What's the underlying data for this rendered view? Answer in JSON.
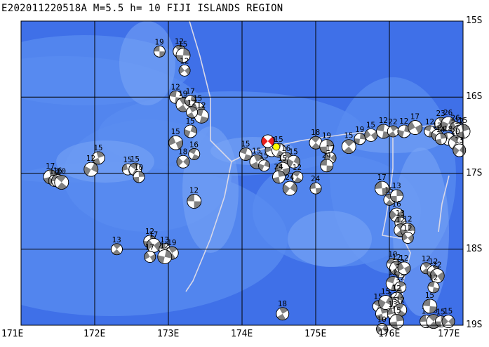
{
  "title": "E202011220518A M=5.5 h= 10 FIJI ISLANDS REGION",
  "map": {
    "lon_range": [
      171,
      177
    ],
    "lat_range": [
      -19,
      -15
    ],
    "colors": {
      "ocean_deep": "#3f70e8",
      "ocean_shallow": "#5a8cf0",
      "ridge": "#7aa6f6",
      "grid": "#000000",
      "plate_boundary": "#d8d8e8",
      "mechanism_fill": "#808080",
      "event_fill": "#e82020",
      "event_center": "#ffff00"
    },
    "x_labels": [
      {
        "lon": 171,
        "text": "171E"
      },
      {
        "lon": 172,
        "text": "172E"
      },
      {
        "lon": 173,
        "text": "173E"
      },
      {
        "lon": 174,
        "text": "174E"
      },
      {
        "lon": 175,
        "text": "175E"
      },
      {
        "lon": 176,
        "text": "176E"
      },
      {
        "lon": 177,
        "text": "177E"
      }
    ],
    "y_labels": [
      {
        "lat": -15,
        "text": "15S"
      },
      {
        "lat": -16,
        "text": "16S"
      },
      {
        "lat": -17,
        "text": "17S"
      },
      {
        "lat": -18,
        "text": "18S"
      },
      {
        "lat": -19,
        "text": "19S"
      }
    ],
    "main_event": {
      "lon": 174.35,
      "lat": -16.58
    },
    "mechanisms": [
      {
        "lon": 172.88,
        "lat": -15.4,
        "depth": "19"
      },
      {
        "lon": 173.15,
        "lat": -15.4,
        "depth": "12"
      },
      {
        "lon": 173.2,
        "lat": -15.45,
        "depth": "15"
      },
      {
        "lon": 173.22,
        "lat": -15.65,
        "depth": "12"
      },
      {
        "lon": 173.1,
        "lat": -16.0,
        "depth": "12"
      },
      {
        "lon": 173.2,
        "lat": -16.1,
        "depth": "19"
      },
      {
        "lon": 173.3,
        "lat": -16.05,
        "depth": "17"
      },
      {
        "lon": 173.4,
        "lat": -16.15,
        "depth": "15"
      },
      {
        "lon": 173.45,
        "lat": -16.25,
        "depth": "12"
      },
      {
        "lon": 173.32,
        "lat": -16.2,
        "depth": "12"
      },
      {
        "lon": 173.3,
        "lat": -16.45,
        "depth": "15"
      },
      {
        "lon": 173.1,
        "lat": -16.6,
        "depth": "15"
      },
      {
        "lon": 173.35,
        "lat": -16.75,
        "depth": "16"
      },
      {
        "lon": 172.05,
        "lat": -16.8,
        "depth": "15"
      },
      {
        "lon": 171.95,
        "lat": -16.95,
        "depth": "12"
      },
      {
        "lon": 172.45,
        "lat": -16.95,
        "depth": "15"
      },
      {
        "lon": 172.55,
        "lat": -16.95,
        "depth": "15"
      },
      {
        "lon": 171.4,
        "lat": -17.05,
        "depth": "17"
      },
      {
        "lon": 171.45,
        "lat": -17.1,
        "depth": "13"
      },
      {
        "lon": 171.5,
        "lat": -17.1,
        "depth": "16"
      },
      {
        "lon": 171.55,
        "lat": -17.12,
        "depth": "20"
      },
      {
        "lon": 172.6,
        "lat": -17.05,
        "depth": "10"
      },
      {
        "lon": 173.2,
        "lat": -16.85,
        "depth": "18"
      },
      {
        "lon": 173.35,
        "lat": -17.37,
        "depth": "12"
      },
      {
        "lon": 172.3,
        "lat": -18.0,
        "depth": "13"
      },
      {
        "lon": 172.75,
        "lat": -17.9,
        "depth": "12"
      },
      {
        "lon": 172.8,
        "lat": -17.95,
        "depth": "17"
      },
      {
        "lon": 172.95,
        "lat": -18.0,
        "depth": "13"
      },
      {
        "lon": 173.05,
        "lat": -18.05,
        "depth": "19"
      },
      {
        "lon": 172.95,
        "lat": -18.1,
        "depth": "12"
      },
      {
        "lon": 172.75,
        "lat": -18.1,
        "depth": "17"
      },
      {
        "lon": 174.05,
        "lat": -16.75,
        "depth": "15"
      },
      {
        "lon": 174.2,
        "lat": -16.85,
        "depth": "15"
      },
      {
        "lon": 174.3,
        "lat": -16.9,
        "depth": "15"
      },
      {
        "lon": 174.4,
        "lat": -16.7,
        "depth": "19"
      },
      {
        "lon": 174.5,
        "lat": -16.7,
        "depth": "15"
      },
      {
        "lon": 174.6,
        "lat": -16.8,
        "depth": "16"
      },
      {
        "lon": 174.7,
        "lat": -16.85,
        "depth": "15"
      },
      {
        "lon": 174.55,
        "lat": -16.95,
        "depth": "15"
      },
      {
        "lon": 174.75,
        "lat": -17.05,
        "depth": "12"
      },
      {
        "lon": 174.5,
        "lat": -17.05,
        "depth": "24"
      },
      {
        "lon": 174.65,
        "lat": -17.2,
        "depth": "24"
      },
      {
        "lon": 175.0,
        "lat": -17.2,
        "depth": "24"
      },
      {
        "lon": 175.0,
        "lat": -16.6,
        "depth": "18"
      },
      {
        "lon": 175.15,
        "lat": -16.65,
        "depth": "19"
      },
      {
        "lon": 175.2,
        "lat": -16.8,
        "depth": "17"
      },
      {
        "lon": 175.15,
        "lat": -16.9,
        "depth": "24"
      },
      {
        "lon": 175.45,
        "lat": -16.65,
        "depth": "15"
      },
      {
        "lon": 175.6,
        "lat": -16.55,
        "depth": "19"
      },
      {
        "lon": 175.75,
        "lat": -16.5,
        "depth": "15"
      },
      {
        "lon": 175.92,
        "lat": -16.45,
        "depth": "12"
      },
      {
        "lon": 176.05,
        "lat": -16.45,
        "depth": "22"
      },
      {
        "lon": 176.2,
        "lat": -16.45,
        "depth": "12"
      },
      {
        "lon": 176.35,
        "lat": -16.4,
        "depth": "17"
      },
      {
        "lon": 176.55,
        "lat": -16.45,
        "depth": "12"
      },
      {
        "lon": 176.7,
        "lat": -16.35,
        "depth": "23"
      },
      {
        "lon": 176.8,
        "lat": -16.35,
        "depth": "26"
      },
      {
        "lon": 176.9,
        "lat": -16.4,
        "depth": "26"
      },
      {
        "lon": 176.95,
        "lat": -16.45,
        "depth": "12"
      },
      {
        "lon": 177.0,
        "lat": -16.45,
        "depth": "15"
      },
      {
        "lon": 176.65,
        "lat": -16.5,
        "depth": "13"
      },
      {
        "lon": 176.8,
        "lat": -16.55,
        "depth": "18"
      },
      {
        "lon": 176.9,
        "lat": -16.6,
        "depth": "20"
      },
      {
        "lon": 176.7,
        "lat": -16.55,
        "depth": "14"
      },
      {
        "lon": 176.95,
        "lat": -16.7,
        "depth": "13"
      },
      {
        "lon": 175.9,
        "lat": -17.2,
        "depth": "17"
      },
      {
        "lon": 176.0,
        "lat": -17.35,
        "depth": "15"
      },
      {
        "lon": 176.1,
        "lat": -17.3,
        "depth": "13"
      },
      {
        "lon": 176.1,
        "lat": -17.55,
        "depth": "16"
      },
      {
        "lon": 176.15,
        "lat": -17.65,
        "depth": "13"
      },
      {
        "lon": 176.15,
        "lat": -17.75,
        "depth": "12"
      },
      {
        "lon": 176.25,
        "lat": -17.75,
        "depth": "12"
      },
      {
        "lon": 176.25,
        "lat": -17.85,
        "depth": "12"
      },
      {
        "lon": 176.05,
        "lat": -18.2,
        "depth": "10"
      },
      {
        "lon": 176.1,
        "lat": -18.25,
        "depth": "12"
      },
      {
        "lon": 176.15,
        "lat": -18.3,
        "depth": "12"
      },
      {
        "lon": 176.2,
        "lat": -18.25,
        "depth": "12"
      },
      {
        "lon": 176.05,
        "lat": -18.45,
        "depth": "12"
      },
      {
        "lon": 176.15,
        "lat": -18.5,
        "depth": "12"
      },
      {
        "lon": 176.1,
        "lat": -18.65,
        "depth": "12"
      },
      {
        "lon": 176.05,
        "lat": -18.75,
        "depth": "12"
      },
      {
        "lon": 175.85,
        "lat": -18.75,
        "depth": "15"
      },
      {
        "lon": 175.9,
        "lat": -18.85,
        "depth": "18"
      },
      {
        "lon": 175.95,
        "lat": -18.7,
        "depth": "15"
      },
      {
        "lon": 176.05,
        "lat": -18.85,
        "depth": "13"
      },
      {
        "lon": 176.15,
        "lat": -18.8,
        "depth": "12"
      },
      {
        "lon": 176.1,
        "lat": -18.95,
        "depth": "15"
      },
      {
        "lon": 175.9,
        "lat": -19.05,
        "depth": "10"
      },
      {
        "lon": 176.5,
        "lat": -18.95,
        "depth": "15"
      },
      {
        "lon": 176.6,
        "lat": -18.95,
        "depth": "15"
      },
      {
        "lon": 176.7,
        "lat": -18.95,
        "depth": "15"
      },
      {
        "lon": 176.8,
        "lat": -18.95,
        "depth": "15"
      },
      {
        "lon": 176.55,
        "lat": -18.75,
        "depth": "15"
      },
      {
        "lon": 176.5,
        "lat": -18.25,
        "depth": "12"
      },
      {
        "lon": 176.6,
        "lat": -18.3,
        "depth": "12"
      },
      {
        "lon": 176.65,
        "lat": -18.35,
        "depth": "22"
      },
      {
        "lon": 176.6,
        "lat": -18.5,
        "depth": "12"
      },
      {
        "lon": 174.55,
        "lat": -18.85,
        "depth": "18"
      }
    ]
  }
}
